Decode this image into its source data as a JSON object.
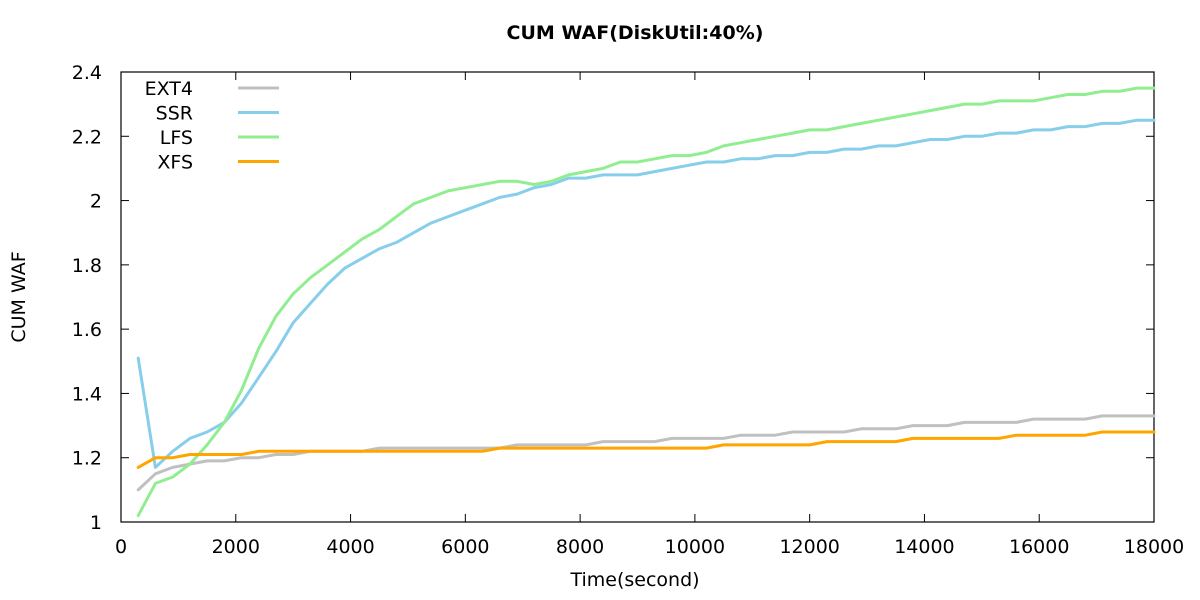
{
  "chart_data": {
    "type": "line",
    "title": "CUM WAF(DiskUtil:40%)",
    "xlabel": "Time(second)",
    "ylabel": "CUM WAF",
    "xlim": [
      0,
      18000
    ],
    "ylim": [
      1,
      2.4
    ],
    "xticks": [
      0,
      2000,
      4000,
      6000,
      8000,
      10000,
      12000,
      14000,
      16000,
      18000
    ],
    "xtick_labels": [
      "0",
      "2000",
      "4000",
      "6000",
      "8000",
      "10000",
      "12000",
      "14000",
      "16000",
      "18000"
    ],
    "yticks": [
      1,
      1.2,
      1.4,
      1.6,
      1.8,
      2,
      2.2,
      2.4
    ],
    "ytick_labels": [
      "1",
      "1.2",
      "1.4",
      "1.6",
      "1.8",
      "2",
      "2.2",
      "2.4"
    ],
    "grid": false,
    "legend_position": "top-left",
    "series": [
      {
        "name": "EXT4",
        "color": "#c0c0c0",
        "x": [
          300,
          600,
          900,
          1200,
          1500,
          1800,
          2100,
          2400,
          2700,
          3000,
          3300,
          3600,
          3900,
          4200,
          4500,
          4800,
          5100,
          5400,
          5700,
          6000,
          6300,
          6600,
          6900,
          7200,
          7500,
          7800,
          8100,
          8400,
          8700,
          9000,
          9300,
          9600,
          9900,
          10200,
          10500,
          10800,
          11100,
          11400,
          11700,
          12000,
          12300,
          12600,
          12900,
          13200,
          13500,
          13800,
          14100,
          14400,
          14700,
          15000,
          15300,
          15600,
          15900,
          16200,
          16500,
          16800,
          17100,
          17400,
          17700,
          18000
        ],
        "y": [
          1.1,
          1.15,
          1.17,
          1.18,
          1.19,
          1.19,
          1.2,
          1.2,
          1.21,
          1.21,
          1.22,
          1.22,
          1.22,
          1.22,
          1.23,
          1.23,
          1.23,
          1.23,
          1.23,
          1.23,
          1.23,
          1.23,
          1.24,
          1.24,
          1.24,
          1.24,
          1.24,
          1.25,
          1.25,
          1.25,
          1.25,
          1.26,
          1.26,
          1.26,
          1.26,
          1.27,
          1.27,
          1.27,
          1.28,
          1.28,
          1.28,
          1.28,
          1.29,
          1.29,
          1.29,
          1.3,
          1.3,
          1.3,
          1.31,
          1.31,
          1.31,
          1.31,
          1.32,
          1.32,
          1.32,
          1.32,
          1.33,
          1.33,
          1.33,
          1.33
        ]
      },
      {
        "name": "SSR",
        "color": "#87ceeb",
        "x": [
          300,
          600,
          900,
          1200,
          1500,
          1800,
          2100,
          2400,
          2700,
          3000,
          3300,
          3600,
          3900,
          4200,
          4500,
          4800,
          5100,
          5400,
          5700,
          6000,
          6300,
          6600,
          6900,
          7200,
          7500,
          7800,
          8100,
          8400,
          8700,
          9000,
          9300,
          9600,
          9900,
          10200,
          10500,
          10800,
          11100,
          11400,
          11700,
          12000,
          12300,
          12600,
          12900,
          13200,
          13500,
          13800,
          14100,
          14400,
          14700,
          15000,
          15300,
          15600,
          15900,
          16200,
          16500,
          16800,
          17100,
          17400,
          17700,
          18000
        ],
        "y": [
          1.51,
          1.17,
          1.22,
          1.26,
          1.28,
          1.31,
          1.37,
          1.45,
          1.53,
          1.62,
          1.68,
          1.74,
          1.79,
          1.82,
          1.85,
          1.87,
          1.9,
          1.93,
          1.95,
          1.97,
          1.99,
          2.01,
          2.02,
          2.04,
          2.05,
          2.07,
          2.07,
          2.08,
          2.08,
          2.08,
          2.09,
          2.1,
          2.11,
          2.12,
          2.12,
          2.13,
          2.13,
          2.14,
          2.14,
          2.15,
          2.15,
          2.16,
          2.16,
          2.17,
          2.17,
          2.18,
          2.19,
          2.19,
          2.2,
          2.2,
          2.21,
          2.21,
          2.22,
          2.22,
          2.23,
          2.23,
          2.24,
          2.24,
          2.25,
          2.25
        ]
      },
      {
        "name": "LFS",
        "color": "#90ee90",
        "x": [
          300,
          600,
          900,
          1200,
          1500,
          1800,
          2100,
          2400,
          2700,
          3000,
          3300,
          3600,
          3900,
          4200,
          4500,
          4800,
          5100,
          5400,
          5700,
          6000,
          6300,
          6600,
          6900,
          7200,
          7500,
          7800,
          8100,
          8400,
          8700,
          9000,
          9300,
          9600,
          9900,
          10200,
          10500,
          10800,
          11100,
          11400,
          11700,
          12000,
          12300,
          12600,
          12900,
          13200,
          13500,
          13800,
          14100,
          14400,
          14700,
          15000,
          15300,
          15600,
          15900,
          16200,
          16500,
          16800,
          17100,
          17400,
          17700,
          18000
        ],
        "y": [
          1.02,
          1.12,
          1.14,
          1.18,
          1.24,
          1.31,
          1.41,
          1.54,
          1.64,
          1.71,
          1.76,
          1.8,
          1.84,
          1.88,
          1.91,
          1.95,
          1.99,
          2.01,
          2.03,
          2.04,
          2.05,
          2.06,
          2.06,
          2.05,
          2.06,
          2.08,
          2.09,
          2.1,
          2.12,
          2.12,
          2.13,
          2.14,
          2.14,
          2.15,
          2.17,
          2.18,
          2.19,
          2.2,
          2.21,
          2.22,
          2.22,
          2.23,
          2.24,
          2.25,
          2.26,
          2.27,
          2.28,
          2.29,
          2.3,
          2.3,
          2.31,
          2.31,
          2.31,
          2.32,
          2.33,
          2.33,
          2.34,
          2.34,
          2.35,
          2.35
        ]
      },
      {
        "name": "XFS",
        "color": "#ffa500",
        "x": [
          300,
          600,
          900,
          1200,
          1500,
          1800,
          2100,
          2400,
          2700,
          3000,
          3300,
          3600,
          3900,
          4200,
          4500,
          4800,
          5100,
          5400,
          5700,
          6000,
          6300,
          6600,
          6900,
          7200,
          7500,
          7800,
          8100,
          8400,
          8700,
          9000,
          9300,
          9600,
          9900,
          10200,
          10500,
          10800,
          11100,
          11400,
          11700,
          12000,
          12300,
          12600,
          12900,
          13200,
          13500,
          13800,
          14100,
          14400,
          14700,
          15000,
          15300,
          15600,
          15900,
          16200,
          16500,
          16800,
          17100,
          17400,
          17700,
          18000
        ],
        "y": [
          1.17,
          1.2,
          1.2,
          1.21,
          1.21,
          1.21,
          1.21,
          1.22,
          1.22,
          1.22,
          1.22,
          1.22,
          1.22,
          1.22,
          1.22,
          1.22,
          1.22,
          1.22,
          1.22,
          1.22,
          1.22,
          1.23,
          1.23,
          1.23,
          1.23,
          1.23,
          1.23,
          1.23,
          1.23,
          1.23,
          1.23,
          1.23,
          1.23,
          1.23,
          1.24,
          1.24,
          1.24,
          1.24,
          1.24,
          1.24,
          1.25,
          1.25,
          1.25,
          1.25,
          1.25,
          1.26,
          1.26,
          1.26,
          1.26,
          1.26,
          1.26,
          1.27,
          1.27,
          1.27,
          1.27,
          1.27,
          1.28,
          1.28,
          1.28,
          1.28
        ]
      }
    ]
  }
}
